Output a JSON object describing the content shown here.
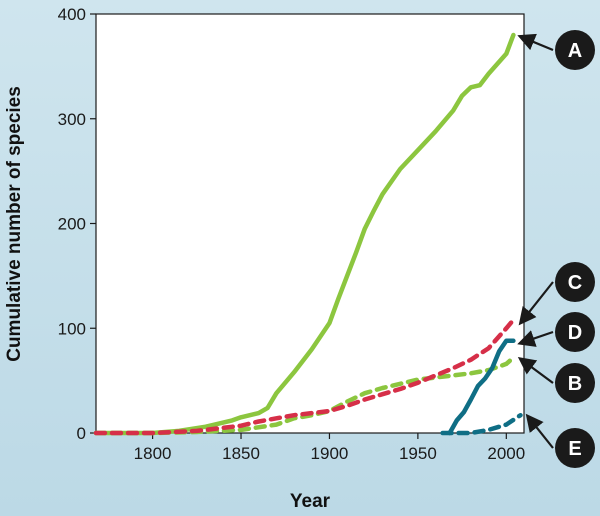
{
  "chart_data": {
    "type": "line",
    "title": "",
    "xlabel": "Year",
    "ylabel": "Cumulative number of species",
    "xlim": [
      1768,
      2010
    ],
    "ylim": [
      0,
      400
    ],
    "x_ticks": [
      1800,
      1850,
      1900,
      1950,
      2000
    ],
    "y_ticks": [
      0,
      100,
      200,
      300,
      400
    ],
    "grid": false,
    "series": [
      {
        "name": "A",
        "color": "#8cc63f",
        "style": "solid",
        "points": [
          [
            1768,
            0
          ],
          [
            1800,
            0
          ],
          [
            1815,
            2
          ],
          [
            1830,
            6
          ],
          [
            1845,
            12
          ],
          [
            1850,
            15
          ],
          [
            1860,
            19
          ],
          [
            1865,
            24
          ],
          [
            1870,
            38
          ],
          [
            1880,
            58
          ],
          [
            1890,
            80
          ],
          [
            1900,
            105
          ],
          [
            1905,
            128
          ],
          [
            1910,
            150
          ],
          [
            1915,
            172
          ],
          [
            1920,
            195
          ],
          [
            1925,
            212
          ],
          [
            1930,
            228
          ],
          [
            1940,
            252
          ],
          [
            1950,
            270
          ],
          [
            1960,
            288
          ],
          [
            1970,
            308
          ],
          [
            1975,
            322
          ],
          [
            1980,
            330
          ],
          [
            1985,
            332
          ],
          [
            1990,
            343
          ],
          [
            2000,
            362
          ],
          [
            2004,
            380
          ]
        ]
      },
      {
        "name": "B",
        "color": "#8cc63f",
        "style": "dashed",
        "points": [
          [
            1768,
            0
          ],
          [
            1800,
            0
          ],
          [
            1825,
            1
          ],
          [
            1850,
            3
          ],
          [
            1870,
            8
          ],
          [
            1880,
            14
          ],
          [
            1890,
            17
          ],
          [
            1900,
            21
          ],
          [
            1910,
            30
          ],
          [
            1920,
            38
          ],
          [
            1930,
            43
          ],
          [
            1940,
            47
          ],
          [
            1950,
            51
          ],
          [
            1960,
            53
          ],
          [
            1970,
            55
          ],
          [
            1980,
            57
          ],
          [
            1990,
            60
          ],
          [
            2000,
            66
          ],
          [
            2004,
            72
          ]
        ]
      },
      {
        "name": "C",
        "color": "#d62f48",
        "style": "dashed",
        "points": [
          [
            1768,
            0
          ],
          [
            1800,
            0
          ],
          [
            1825,
            2
          ],
          [
            1850,
            7
          ],
          [
            1860,
            11
          ],
          [
            1870,
            14
          ],
          [
            1880,
            17
          ],
          [
            1890,
            19
          ],
          [
            1900,
            21
          ],
          [
            1910,
            26
          ],
          [
            1920,
            32
          ],
          [
            1930,
            37
          ],
          [
            1940,
            42
          ],
          [
            1950,
            48
          ],
          [
            1960,
            55
          ],
          [
            1970,
            62
          ],
          [
            1980,
            70
          ],
          [
            1990,
            81
          ],
          [
            2000,
            100
          ],
          [
            2004,
            108
          ]
        ]
      },
      {
        "name": "D",
        "color": "#0f6e85",
        "style": "solid",
        "points": [
          [
            1968,
            0
          ],
          [
            1972,
            12
          ],
          [
            1976,
            20
          ],
          [
            1980,
            32
          ],
          [
            1984,
            45
          ],
          [
            1988,
            52
          ],
          [
            1992,
            62
          ],
          [
            1996,
            78
          ],
          [
            2000,
            88
          ],
          [
            2004,
            88
          ]
        ]
      },
      {
        "name": "E",
        "color": "#0f6e85",
        "style": "dashed",
        "points": [
          [
            1964,
            0
          ],
          [
            1980,
            0
          ],
          [
            1990,
            3
          ],
          [
            2000,
            8
          ],
          [
            2008,
            17
          ]
        ]
      }
    ],
    "labels": [
      "A",
      "B",
      "C",
      "D",
      "E"
    ]
  }
}
